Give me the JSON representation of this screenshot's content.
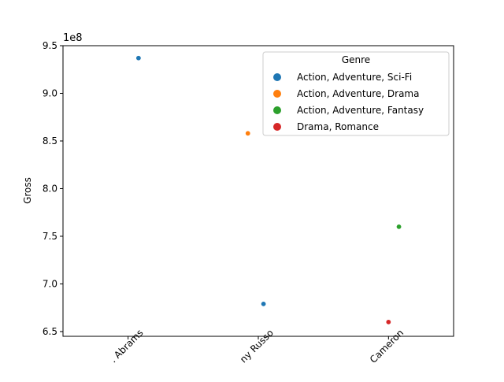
{
  "chart_data": {
    "type": "scatter",
    "title": "",
    "xlabel": "",
    "ylabel": "Gross",
    "scale_label": "1e8",
    "categories": [
      "J.J. Abrams",
      "Anthony Russo",
      "James Cameron"
    ],
    "category_tick_labels": [
      ". Abrams",
      "ny Russo",
      "Cameron"
    ],
    "x_tick_rotation_deg": 45,
    "ylim": [
      6.45,
      9.5
    ],
    "yticks": [
      6.5,
      7.0,
      7.5,
      8.0,
      8.5,
      9.0,
      9.5
    ],
    "ytick_labels": [
      "6.5",
      "7.0",
      "7.5",
      "8.0",
      "8.5",
      "9.0",
      "9.5"
    ],
    "grid": false,
    "legend": {
      "title": "Genre",
      "position": "top-right"
    },
    "series": [
      {
        "name": "Action, Adventure, Sci-Fi",
        "color": "#1f77b4",
        "points": [
          {
            "category": "J.J. Abrams",
            "jitter": 0.08,
            "y": 9.37
          },
          {
            "category": "Anthony Russo",
            "jitter": 0.04,
            "y": 6.79
          }
        ]
      },
      {
        "name": "Action, Adventure, Drama",
        "color": "#ff7f0e",
        "points": [
          {
            "category": "Anthony Russo",
            "jitter": -0.08,
            "y": 8.58
          }
        ]
      },
      {
        "name": "Action, Adventure, Fantasy",
        "color": "#2ca02c",
        "points": [
          {
            "category": "James Cameron",
            "jitter": 0.08,
            "y": 7.6
          }
        ]
      },
      {
        "name": "Drama, Romance",
        "color": "#d62728",
        "points": [
          {
            "category": "James Cameron",
            "jitter": 0.0,
            "y": 6.6
          }
        ]
      }
    ]
  }
}
